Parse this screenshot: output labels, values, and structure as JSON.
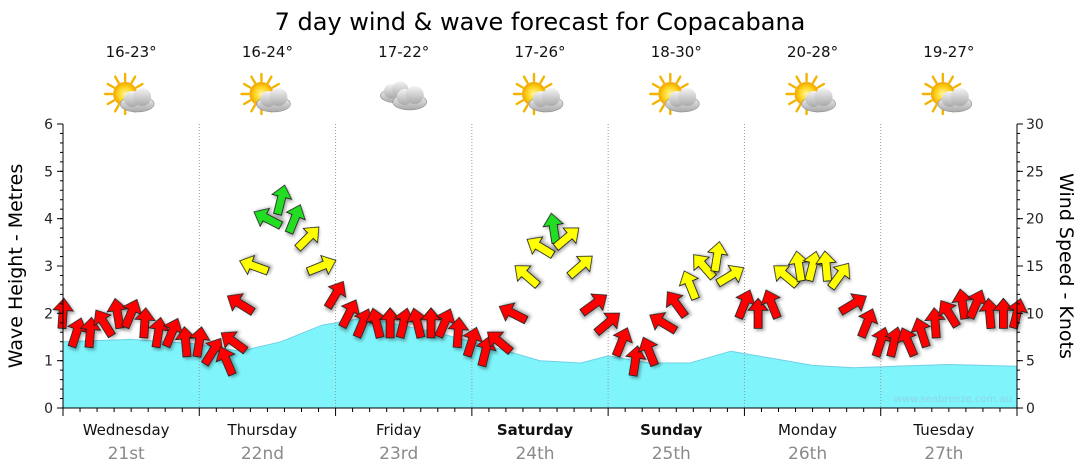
{
  "title": "7 day wind & wave forecast for Copacabana",
  "watermark": "www.seabreeze.com.au",
  "left_axis_title": "Wave Height - Metres",
  "right_axis_title": "Wind Speed - Knots",
  "days": [
    {
      "name": "Wednesday",
      "num": "21st",
      "temp": "16-23°",
      "icon": "sun-cloud-icon",
      "bold": false
    },
    {
      "name": "Thursday",
      "num": "22nd",
      "temp": "16-24°",
      "icon": "sun-cloud-icon",
      "bold": false
    },
    {
      "name": "Friday",
      "num": "23rd",
      "temp": "17-22°",
      "icon": "cloud-icon",
      "bold": false
    },
    {
      "name": "Saturday",
      "num": "24th",
      "temp": "17-26°",
      "icon": "sun-cloud-icon",
      "bold": true
    },
    {
      "name": "Sunday",
      "num": "25th",
      "temp": "18-30°",
      "icon": "sun-cloud-icon",
      "bold": true
    },
    {
      "name": "Monday",
      "num": "26th",
      "temp": "20-28°",
      "icon": "sun-cloud-icon",
      "bold": false
    },
    {
      "name": "Tuesday",
      "num": "27th",
      "temp": "19-27°",
      "icon": "sun-cloud-icon",
      "bold": false
    }
  ],
  "colors": {
    "wave_fill": "#7ff5fb",
    "wave_line": "#6fd0e6",
    "wind_low": "#ff0000",
    "wind_mid": "#ffff00",
    "wind_high": "#22dd22"
  },
  "chart_data": {
    "type": "area",
    "x_unit": "days from Wednesday 00:00",
    "xlim": [
      0,
      7
    ],
    "left_axis": {
      "label": "Wave Height - Metres",
      "ylim": [
        0,
        6
      ],
      "ticks": [
        0,
        1,
        2,
        3,
        4,
        5,
        6
      ]
    },
    "right_axis": {
      "label": "Wind Speed - Knots",
      "ylim": [
        0,
        30
      ],
      "ticks": [
        0,
        5,
        10,
        15,
        20,
        25,
        30
      ]
    },
    "grid": "vertical dotted at day boundaries",
    "wave_height": {
      "x": [
        0,
        0.5,
        1,
        1.3,
        1.6,
        1.9,
        2.2,
        2.4,
        2.8,
        3.2,
        3.5,
        3.8,
        4.0,
        4.3,
        4.6,
        4.9,
        5.2,
        5.5,
        5.8,
        6.1,
        6.5,
        7.0
      ],
      "y": [
        1.4,
        1.45,
        1.35,
        1.2,
        1.4,
        1.75,
        1.9,
        1.8,
        1.55,
        1.25,
        1.0,
        0.95,
        1.1,
        0.95,
        0.95,
        1.2,
        1.05,
        0.9,
        0.85,
        0.88,
        0.92,
        0.88
      ]
    },
    "wind_speed": {
      "x": [
        0.0,
        0.1,
        0.2,
        0.3,
        0.4,
        0.5,
        0.6,
        0.7,
        0.8,
        0.9,
        1.0,
        1.1,
        1.2,
        1.25,
        1.3,
        1.4,
        1.5,
        1.6,
        1.7,
        1.8,
        1.9,
        2.0,
        2.1,
        2.2,
        2.3,
        2.4,
        2.5,
        2.6,
        2.7,
        2.8,
        2.9,
        3.0,
        3.1,
        3.2,
        3.3,
        3.4,
        3.5,
        3.6,
        3.7,
        3.8,
        3.9,
        4.0,
        4.1,
        4.2,
        4.3,
        4.4,
        4.5,
        4.6,
        4.7,
        4.8,
        4.9,
        5.0,
        5.1,
        5.2,
        5.3,
        5.4,
        5.5,
        5.6,
        5.7,
        5.8,
        5.9,
        6.0,
        6.1,
        6.2,
        6.3,
        6.4,
        6.5,
        6.6,
        6.7,
        6.8,
        6.9,
        7.0
      ],
      "y": [
        10,
        8,
        8,
        9,
        10,
        10,
        9,
        8,
        8,
        7,
        7,
        6,
        5,
        7,
        11,
        15,
        20,
        22,
        20,
        18,
        15,
        12,
        10,
        9,
        9,
        9,
        9,
        9,
        9,
        9,
        8,
        7,
        6,
        7,
        10,
        14,
        17,
        19,
        18,
        15,
        11,
        9,
        7,
        5,
        6,
        9,
        11,
        13,
        15,
        16,
        14,
        11,
        10,
        11,
        14,
        15,
        15,
        15,
        14,
        11,
        9,
        7,
        7,
        7,
        8,
        9,
        10,
        11,
        11,
        10,
        10,
        10
      ]
    },
    "wind_bands": [
      {
        "name": "low",
        "max": 12
      },
      {
        "name": "mid",
        "max": 18
      },
      {
        "name": "high",
        "max": 30
      }
    ]
  }
}
